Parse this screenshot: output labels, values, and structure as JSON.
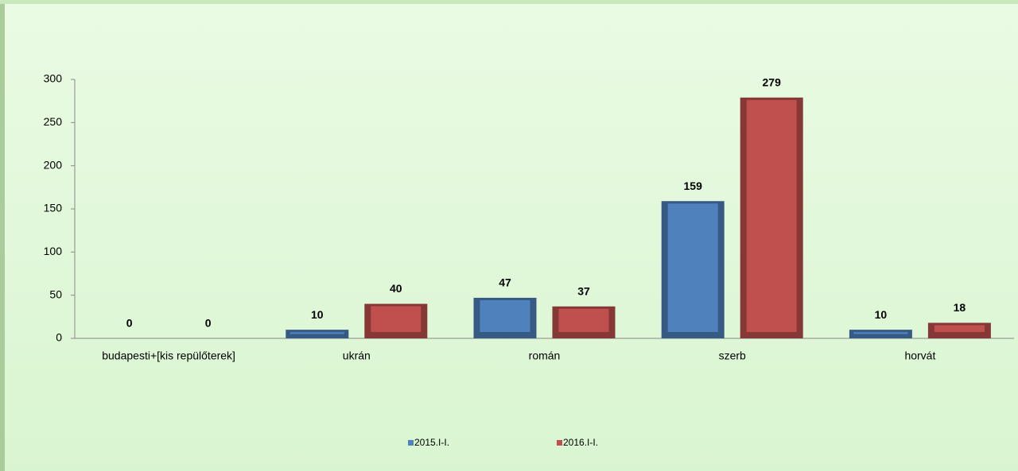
{
  "chart_data": {
    "type": "bar",
    "categories": [
      "budapesti+[kis repülőterek]",
      "ukrán",
      "román",
      "szerb",
      "horvát"
    ],
    "series": [
      {
        "name": "2015.I-I.",
        "color": "#4f81bd",
        "values": [
          0,
          10,
          47,
          159,
          10
        ]
      },
      {
        "name": "2016.I-I.",
        "color": "#c0504d",
        "values": [
          0,
          40,
          37,
          279,
          18
        ]
      }
    ],
    "ylim": [
      0,
      300
    ],
    "yticks": [
      0,
      50,
      100,
      150,
      200,
      250,
      300
    ],
    "grid": false,
    "legend": "bottom"
  }
}
